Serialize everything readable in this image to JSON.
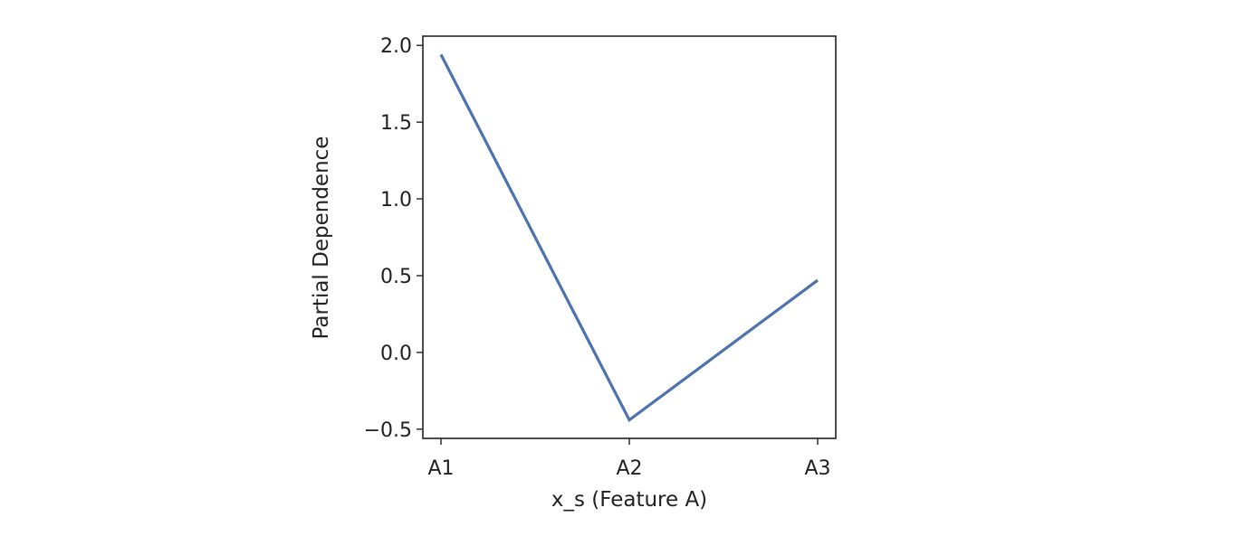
{
  "chart_data": {
    "type": "line",
    "title": "",
    "xlabel": "x_s (Feature A)",
    "ylabel": "Partial Dependence",
    "categories": [
      "A1",
      "A2",
      "A3"
    ],
    "series": [
      {
        "values": [
          1.94,
          -0.44,
          0.47
        ],
        "color": "#4c72b0"
      }
    ],
    "ylim": [
      -0.56,
      2.06
    ],
    "yticks": [
      -0.5,
      0.0,
      0.5,
      1.0,
      1.5,
      2.0
    ],
    "ytick_labels": [
      "−0.5",
      "0.0",
      "0.5",
      "1.0",
      "1.5",
      "2.0"
    ],
    "grid": false,
    "legend": "none"
  }
}
